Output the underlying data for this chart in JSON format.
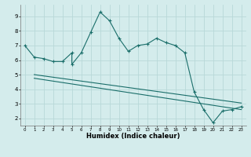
{
  "title": "",
  "xlabel": "Humidex (Indice chaleur)",
  "ylabel": "",
  "bg_color": "#d4ecec",
  "grid_color": "#b8d8d8",
  "line_color": "#1a6e6a",
  "xlim": [
    -0.5,
    23.5
  ],
  "ylim": [
    1.5,
    9.8
  ],
  "xticks": [
    0,
    1,
    2,
    3,
    4,
    5,
    6,
    7,
    8,
    9,
    10,
    11,
    12,
    13,
    14,
    15,
    16,
    17,
    18,
    19,
    20,
    21,
    22,
    23
  ],
  "yticks": [
    2,
    3,
    4,
    5,
    6,
    7,
    8,
    9
  ],
  "main_x": [
    0,
    1,
    2,
    3,
    4,
    5,
    5,
    6,
    7,
    8,
    9,
    10,
    11,
    12,
    13,
    14,
    15,
    16,
    17,
    18,
    19,
    20,
    21,
    22,
    23
  ],
  "main_y": [
    7.0,
    6.2,
    6.1,
    5.9,
    5.9,
    6.5,
    5.7,
    6.5,
    7.9,
    9.3,
    8.7,
    7.5,
    6.6,
    7.0,
    7.1,
    7.5,
    7.2,
    7.0,
    6.5,
    3.8,
    2.6,
    1.7,
    2.5,
    2.6,
    2.8
  ],
  "line1_x": [
    1,
    23
  ],
  "line1_y": [
    5.0,
    3.05
  ],
  "line2_x": [
    1,
    23
  ],
  "line2_y": [
    4.75,
    2.6
  ]
}
